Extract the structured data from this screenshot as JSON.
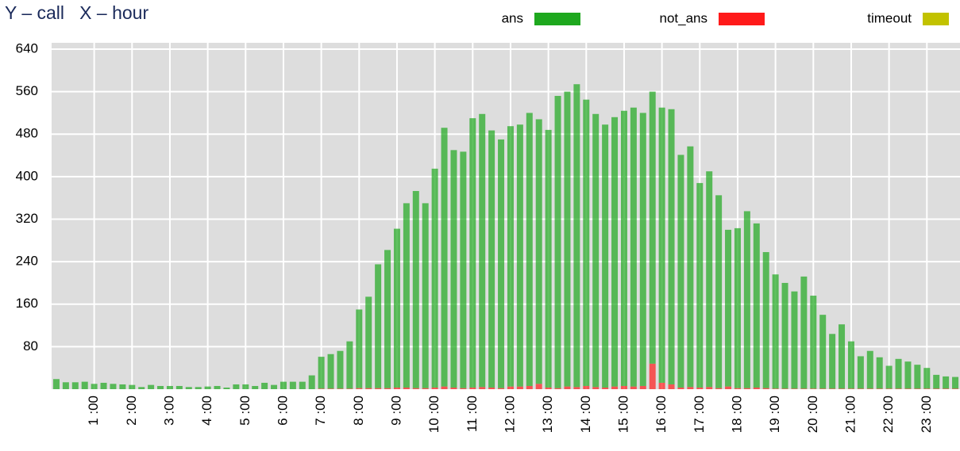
{
  "chart_data": {
    "type": "stacked-bar",
    "title": "Y – call   X – hour",
    "categories": [
      null,
      null,
      null,
      null,
      "1 :00",
      null,
      null,
      null,
      "2 :00",
      null,
      null,
      null,
      "3 :00",
      null,
      null,
      null,
      "4 :00",
      null,
      null,
      null,
      "5 :00",
      null,
      null,
      null,
      "6 :00",
      null,
      null,
      null,
      "7 :00",
      null,
      null,
      null,
      "8 :00",
      null,
      null,
      null,
      "9 :00",
      null,
      null,
      null,
      "10 :00",
      null,
      null,
      null,
      "11 :00",
      null,
      null,
      null,
      "12 :00",
      null,
      null,
      null,
      "13 :00",
      null,
      null,
      null,
      "14 :00",
      null,
      null,
      null,
      "15 :00",
      null,
      null,
      null,
      "16 :00",
      null,
      null,
      null,
      "17 :00",
      null,
      null,
      null,
      "18 :00",
      null,
      null,
      null,
      "19 :00",
      null,
      null,
      null,
      "20 :00",
      null,
      null,
      null,
      "21 :00",
      null,
      null,
      null,
      "22 :00",
      null,
      null,
      null,
      "23 :00",
      null,
      null,
      null
    ],
    "series": [
      {
        "name": "ans",
        "color": "#1ea81e",
        "values": [
          19,
          13,
          13,
          14,
          10,
          12,
          10,
          9,
          8,
          4,
          8,
          6,
          6,
          6,
          4,
          4,
          5,
          6,
          3,
          9,
          9,
          6,
          12,
          8,
          14,
          14,
          14,
          26,
          60,
          65,
          71,
          89,
          148,
          172,
          233,
          260,
          299,
          347,
          371,
          348,
          412,
          487,
          447,
          445,
          507,
          514,
          484,
          468,
          490,
          493,
          514,
          498,
          485,
          550,
          555,
          570,
          539,
          514,
          495,
          507,
          518,
          525,
          514,
          512,
          518,
          518,
          438,
          453,
          385,
          406,
          363,
          295,
          301,
          333,
          309,
          256,
          215,
          199,
          183,
          211,
          175,
          139,
          103,
          121,
          89,
          61,
          71,
          59,
          43,
          56,
          51,
          45,
          39,
          26,
          23,
          22
        ]
      },
      {
        "name": "not_ans",
        "color": "#ff1a1a",
        "values": [
          0,
          0,
          0,
          0,
          0,
          0,
          0,
          0,
          0,
          0,
          0,
          0,
          0,
          0,
          0,
          0,
          0,
          0,
          0,
          0,
          0,
          0,
          0,
          0,
          0,
          0,
          0,
          0,
          1,
          1,
          1,
          1,
          2,
          2,
          2,
          2,
          3,
          3,
          2,
          2,
          3,
          5,
          3,
          2,
          3,
          4,
          3,
          2,
          5,
          5,
          6,
          10,
          3,
          2,
          5,
          4,
          6,
          4,
          3,
          5,
          6,
          5,
          6,
          48,
          12,
          9,
          3,
          4,
          3,
          4,
          2,
          5,
          2,
          2,
          3,
          2,
          1,
          1,
          1,
          1,
          1,
          1,
          1,
          1,
          1,
          1,
          1,
          1,
          1,
          1,
          1,
          1,
          1,
          1,
          1,
          1
        ]
      },
      {
        "name": "timeout",
        "color": "#c2c200",
        "values": [
          0,
          0,
          0,
          0,
          0,
          0,
          0,
          0,
          0,
          0,
          0,
          0,
          0,
          0,
          0,
          0,
          0,
          0,
          0,
          0,
          0,
          0,
          0,
          0,
          0,
          0,
          0,
          0,
          0,
          0,
          0,
          0,
          0,
          0,
          0,
          0,
          0,
          0,
          0,
          0,
          0,
          0,
          0,
          0,
          0,
          0,
          0,
          0,
          0,
          0,
          0,
          0,
          0,
          0,
          0,
          0,
          0,
          0,
          0,
          0,
          0,
          0,
          0,
          0,
          0,
          0,
          0,
          0,
          0,
          0,
          0,
          0,
          0,
          0,
          0,
          0,
          0,
          0,
          0,
          0,
          0,
          0,
          0,
          0,
          0,
          0,
          0,
          0,
          0,
          0,
          0,
          0,
          0,
          0,
          0,
          0
        ]
      }
    ],
    "ylim": [
      0,
      640
    ],
    "yticks": [
      80,
      160,
      240,
      320,
      400,
      480,
      560,
      640
    ],
    "grid": true,
    "legend": "top-right"
  }
}
